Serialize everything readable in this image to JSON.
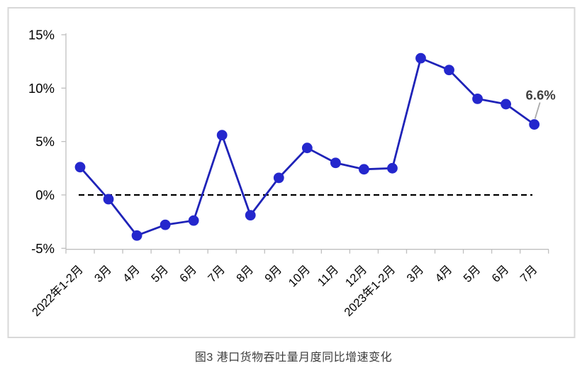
{
  "caption": "图3 港口货物吞吐量月度同比增速变化",
  "chart_data": {
    "type": "line",
    "categories": [
      "2022年1-2月",
      "3月",
      "4月",
      "5月",
      "6月",
      "7月",
      "8月",
      "9月",
      "10月",
      "11月",
      "12月",
      "2023年1-2月",
      "3月",
      "4月",
      "5月",
      "6月",
      "7月"
    ],
    "values": [
      2.6,
      -0.4,
      -3.8,
      -2.8,
      -2.4,
      5.6,
      -1.9,
      1.6,
      4.4,
      3.0,
      2.4,
      2.5,
      12.8,
      11.7,
      9.0,
      8.5,
      6.6
    ],
    "title": "",
    "xlabel": "",
    "ylabel": "",
    "ylim": [
      -5,
      15
    ],
    "ytick_labels": [
      "15%",
      "10%",
      "5%",
      "0%",
      "-5%"
    ],
    "ytick_values": [
      15,
      10,
      5,
      0,
      -5
    ],
    "grid": false,
    "legend": "none",
    "zero_line": {
      "style": "dashed",
      "color": "#000000"
    },
    "annotation": {
      "text": "6.6%",
      "index": 16
    },
    "colors": {
      "line": "#1f23b8",
      "marker": "#2427cd",
      "frame": "#d8d8d8",
      "axis": "#bfbfbf",
      "tick_label": "#000000",
      "annotation_text": "#3f3f3f",
      "leader": "#a9a9a9"
    }
  }
}
